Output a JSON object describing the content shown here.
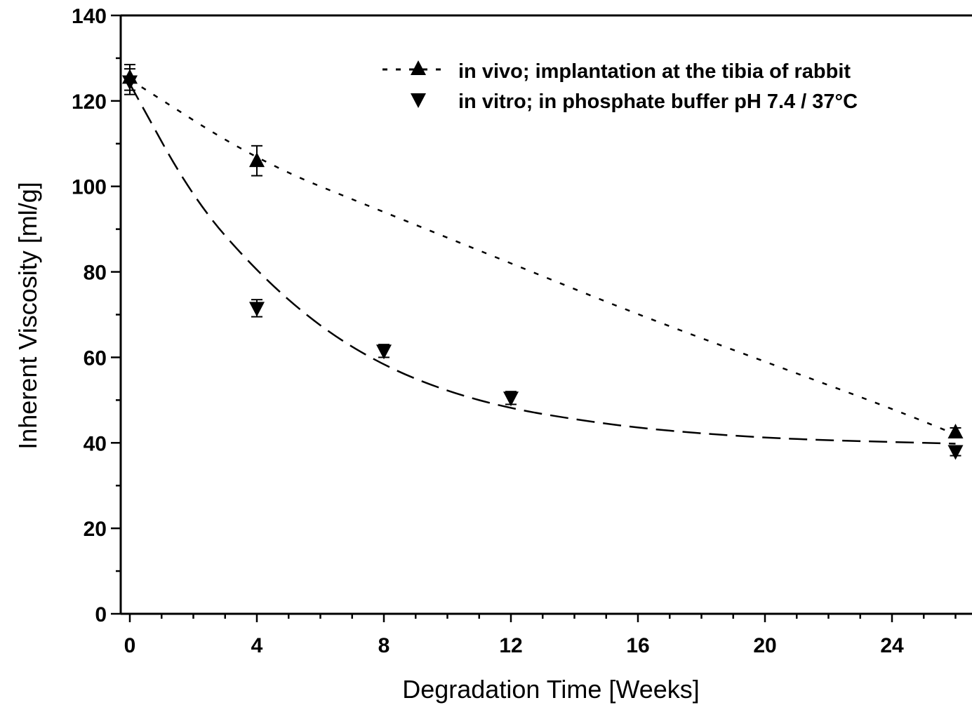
{
  "chart_data": {
    "type": "scatter",
    "xlabel": "Degradation Time [Weeks]",
    "ylabel": "Inherent Viscosity [ml/g]",
    "xlim": [
      -0.3,
      26.5
    ],
    "ylim": [
      0,
      140
    ],
    "xticks": [
      0,
      4,
      8,
      12,
      16,
      20,
      24
    ],
    "yticks": [
      0,
      20,
      40,
      60,
      80,
      100,
      120,
      140
    ],
    "grid": false,
    "legend_position": "top-right",
    "series": [
      {
        "name": "in vivo; implantation at the tibia of rabbit",
        "marker": "triangle-up",
        "line_style": "dotted",
        "x": [
          0,
          4,
          26
        ],
        "y": [
          125.5,
          106,
          42.5
        ],
        "error": [
          3,
          3.5,
          1
        ],
        "fit_curve": {
          "x": [
            0,
            4,
            8,
            12,
            16,
            20,
            24,
            26
          ],
          "y": [
            125,
            106,
            94,
            82,
            70,
            59,
            48,
            42
          ]
        }
      },
      {
        "name": "in vitro; in phosphate buffer pH 7.4 / 37°C",
        "marker": "triangle-down",
        "line_style": "dashed",
        "x": [
          0,
          4,
          8,
          12,
          26
        ],
        "y": [
          124.5,
          71.5,
          61.5,
          50.5,
          38
        ],
        "error": [
          3,
          2,
          1.5,
          1.5,
          1
        ],
        "fit_curve": {
          "x": [
            0,
            2,
            4,
            6,
            8,
            10,
            12,
            14,
            16,
            18,
            20,
            22,
            24,
            26
          ],
          "y": [
            124,
            97,
            80,
            67,
            58,
            52,
            48,
            45.5,
            43.5,
            42.2,
            41.2,
            40.6,
            40.2,
            39.8
          ]
        }
      }
    ]
  }
}
